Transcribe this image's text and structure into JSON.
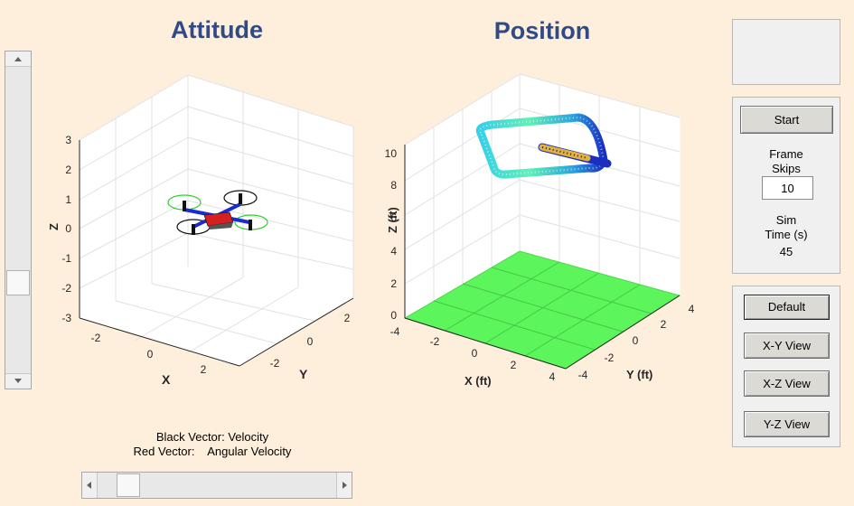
{
  "attitude": {
    "title": "Attitude",
    "xlabel": "X",
    "ylabel": "Y",
    "zlabel": "Z",
    "z_ticks": [
      "3",
      "2",
      "1",
      "0",
      "-1",
      "-2",
      "-3"
    ],
    "x_ticks": [
      "-2",
      "0",
      "2"
    ],
    "y_ticks": [
      "2",
      "0",
      "-2"
    ]
  },
  "position": {
    "title": "Position",
    "xlabel": "X (ft)",
    "ylabel": "Y (ft)",
    "zlabel": "Z (ft)",
    "z_ticks": [
      "10",
      "8",
      "6",
      "4",
      "2",
      "0"
    ],
    "x_ticks": [
      "-4",
      "-2",
      "0",
      "2",
      "4"
    ],
    "y_ticks": [
      "4",
      "2",
      "0",
      "-2",
      "-4"
    ]
  },
  "legend": {
    "line1": "Black Vector: Velocity",
    "line2": "Red Vector:    Angular Velocity"
  },
  "controls": {
    "start_label": "Start",
    "frame_skips_label": "Frame\nSkips",
    "frame_skips_value": "10",
    "sim_time_label": "Sim\nTime (s)",
    "sim_time_value": "45"
  },
  "views": {
    "default_label": "Default",
    "xy_label": "X-Y View",
    "xz_label": "X-Z View",
    "yz_label": "Y-Z View"
  },
  "colors": {
    "background": "#fdefdc",
    "title": "#2f4a86",
    "ground": "#5cf55c",
    "rotor_ring": "#2fd02f",
    "arm": "#1a2bd1",
    "body": "#d81f1f"
  },
  "icons": {
    "scroll_up": "triangle-up-icon",
    "scroll_down": "triangle-down-icon",
    "scroll_left": "triangle-left-icon",
    "scroll_right": "triangle-right-icon"
  }
}
